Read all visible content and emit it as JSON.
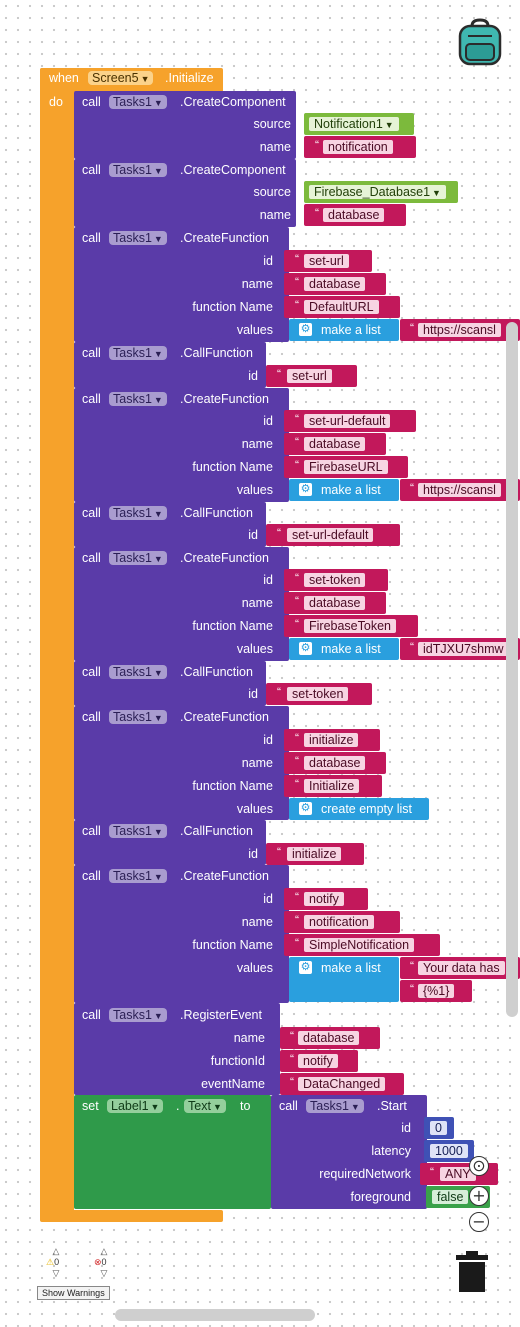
{
  "header": {
    "when_label": "when",
    "screen": "Screen5",
    "event_name": ".Initialize",
    "do_label": "do"
  },
  "kw": {
    "call": "call",
    "set": "set",
    "to": "to",
    "make_list": "make a list",
    "create_empty_list": "create empty list",
    "dot": "."
  },
  "blocks": {
    "b1": {
      "component": "Tasks1",
      "method": ".CreateComponent",
      "p1": "source",
      "v1": "Notification1",
      "p2": "name",
      "v2": "notification"
    },
    "b2": {
      "component": "Tasks1",
      "method": ".CreateComponent",
      "p1": "source",
      "v1": "Firebase_Database1",
      "p2": "name",
      "v2": "database"
    },
    "b3": {
      "component": "Tasks1",
      "method": ".CreateFunction",
      "p1": "id",
      "v1": "set-url",
      "p2": "name",
      "v2": "database",
      "p3": "function Name",
      "v3": "DefaultURL",
      "p4": "values",
      "v4": "https://scansl"
    },
    "b4": {
      "component": "Tasks1",
      "method": ".CallFunction",
      "p1": "id",
      "v1": "set-url"
    },
    "b5": {
      "component": "Tasks1",
      "method": ".CreateFunction",
      "p1": "id",
      "v1": "set-url-default",
      "p2": "name",
      "v2": "database",
      "p3": "function Name",
      "v3": "FirebaseURL",
      "p4": "values",
      "v4": "https://scansl"
    },
    "b6": {
      "component": "Tasks1",
      "method": ".CallFunction",
      "p1": "id",
      "v1": "set-url-default"
    },
    "b7": {
      "component": "Tasks1",
      "method": ".CreateFunction",
      "p1": "id",
      "v1": "set-token",
      "p2": "name",
      "v2": "database",
      "p3": "function Name",
      "v3": "FirebaseToken",
      "p4": "values",
      "v4": "idTJXU7shmw"
    },
    "b8": {
      "component": "Tasks1",
      "method": ".CallFunction",
      "p1": "id",
      "v1": "set-token"
    },
    "b9": {
      "component": "Tasks1",
      "method": ".CreateFunction",
      "p1": "id",
      "v1": "initialize",
      "p2": "name",
      "v2": "database",
      "p3": "function Name",
      "v3": "Initialize",
      "p4": "values"
    },
    "b10": {
      "component": "Tasks1",
      "method": ".CallFunction",
      "p1": "id",
      "v1": "initialize"
    },
    "b11": {
      "component": "Tasks1",
      "method": ".CreateFunction",
      "p1": "id",
      "v1": "notify",
      "p2": "name",
      "v2": "notification",
      "p3": "function Name",
      "v3": "SimpleNotification",
      "p4": "values",
      "v4": "Your data has",
      "v5": "{%1}"
    },
    "b12": {
      "component": "Tasks1",
      "method": ".RegisterEvent",
      "p1": "name",
      "v1": "database",
      "p2": "functionId",
      "v2": "notify",
      "p3": "eventName",
      "v3": "DataChanged"
    },
    "b13": {
      "set_component": "Label1",
      "property": "Text",
      "component": "Tasks1",
      "method": ".Start",
      "p1": "id",
      "v1": "0",
      "p2": "latency",
      "v2": "1000",
      "p3": "requiredNetwork",
      "v3": "ANY",
      "p4": "foreground",
      "v4": "false"
    }
  },
  "warnings": {
    "warn_count": "0",
    "error_count": "0",
    "show_label": "Show Warnings"
  },
  "icons": {
    "backpack": "backpack-icon",
    "trash": "trash-icon",
    "gear": "gear-icon",
    "warning": "warning-icon",
    "error": "error-icon"
  },
  "colors": {
    "event": "#f6a22b",
    "procedure": "#5a3ba8",
    "text": "#c2185b",
    "list": "#2a9fde",
    "set": "#2f9a4a",
    "component": "#7cba3c"
  }
}
